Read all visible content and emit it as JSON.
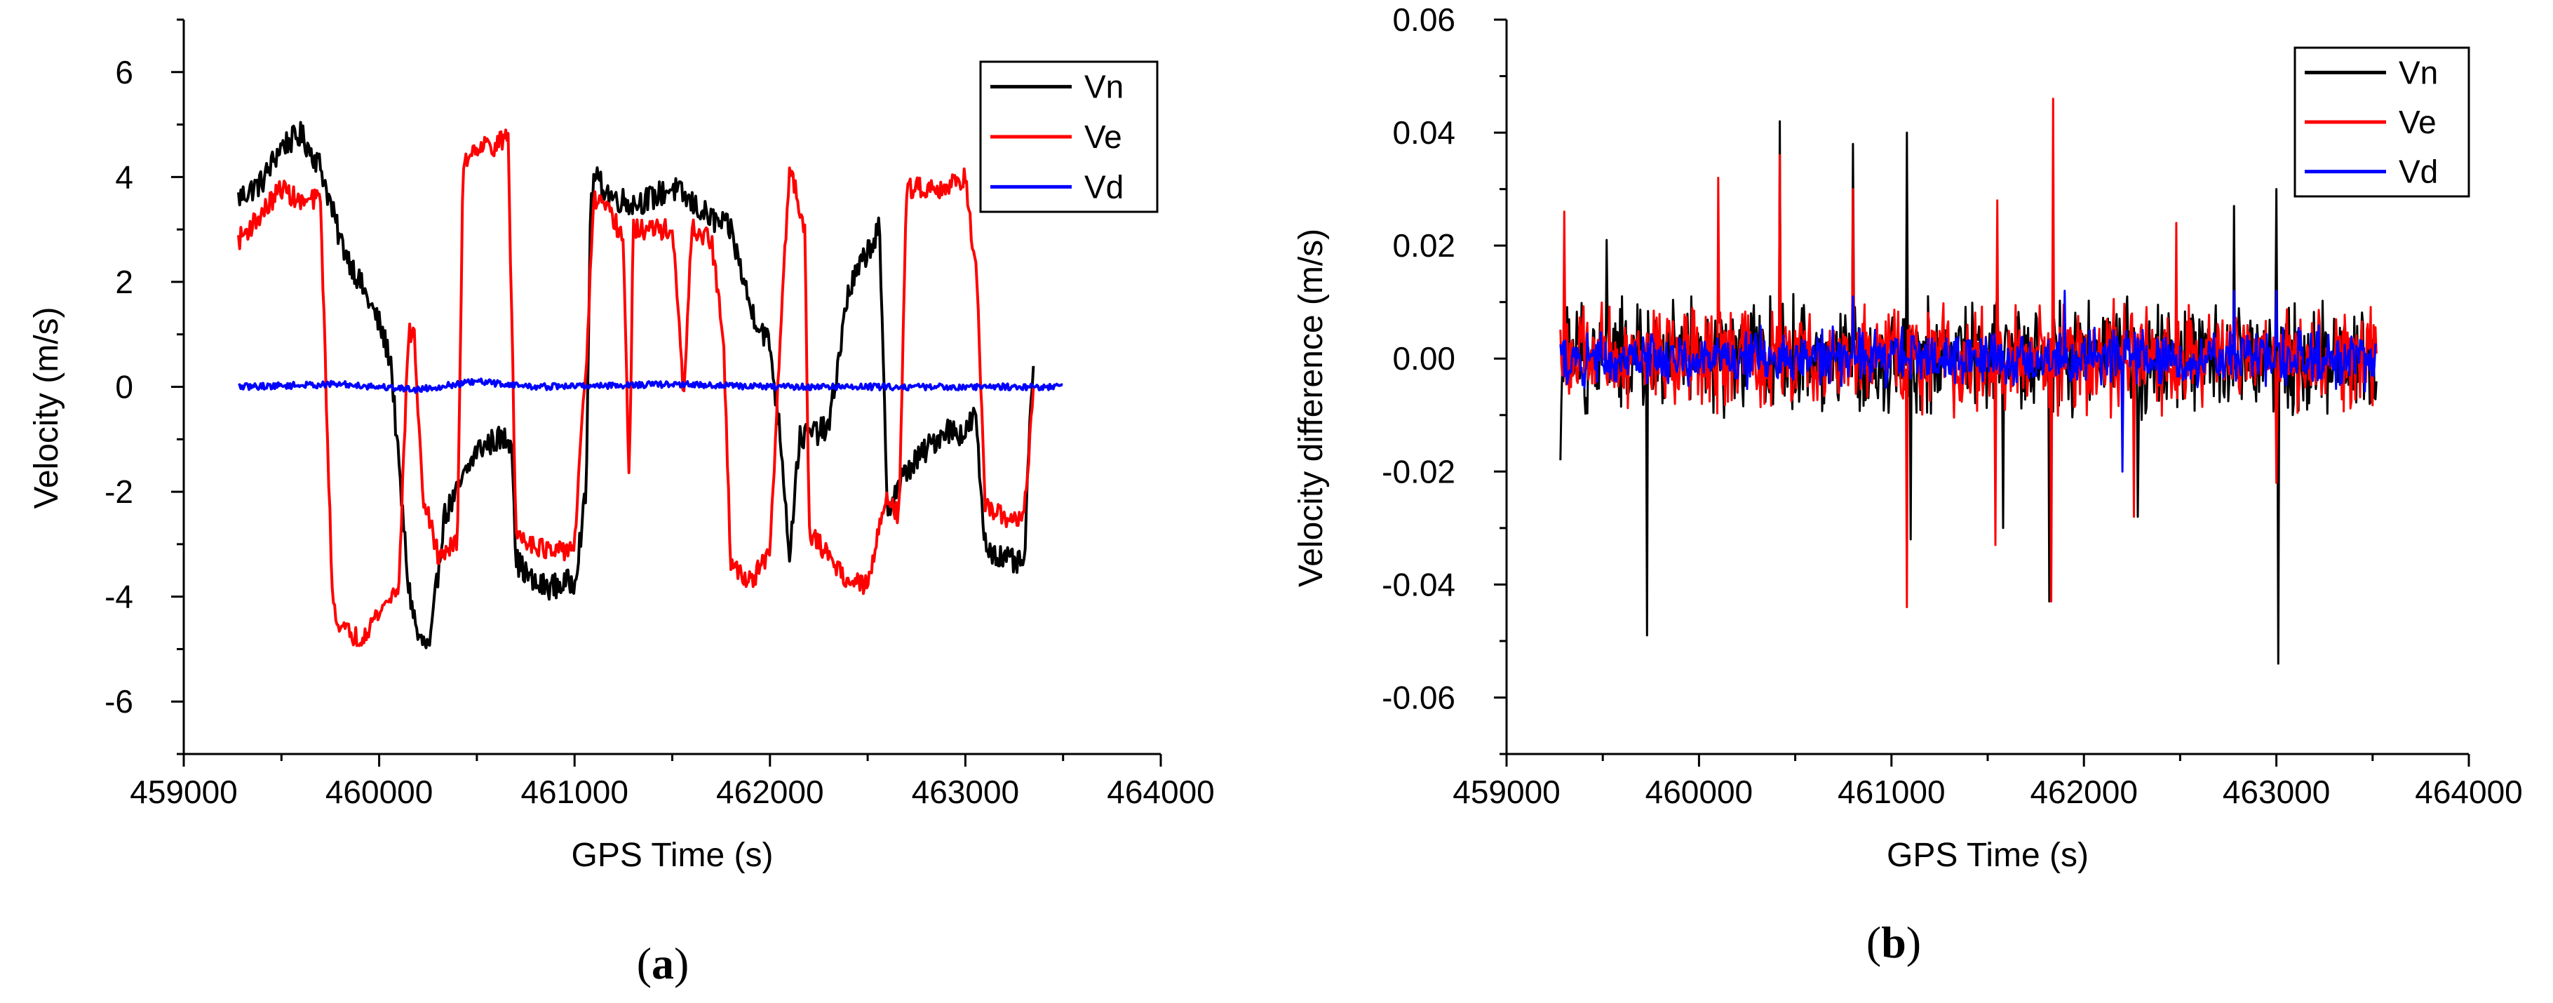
{
  "chart_data": [
    {
      "type": "line",
      "panel": "(a)",
      "panel_letter": "a",
      "xlabel": "GPS Time (s)",
      "ylabel": "Velocity (m/s)",
      "xlim": [
        459000,
        464000
      ],
      "ylim": [
        -7,
        7
      ],
      "xticks": [
        459000,
        460000,
        461000,
        462000,
        463000,
        464000
      ],
      "xtick_labels": [
        "459000",
        "460000",
        "461000",
        "462000",
        "463000",
        "464000"
      ],
      "yticks": [
        -6,
        -4,
        -2,
        0,
        2,
        4,
        6
      ],
      "ytick_labels": [
        "-6",
        "-4",
        "-2",
        "0",
        "2",
        "4",
        "6"
      ],
      "legend": "top-right",
      "series": [
        {
          "name": "Vn",
          "color": "#000000",
          "noise": 0.25,
          "x": [
            459280,
            459400,
            459500,
            459600,
            459700,
            459800,
            459900,
            460000,
            460060,
            460100,
            460150,
            460200,
            460260,
            460330,
            460400,
            460500,
            460600,
            460680,
            460700,
            460800,
            460900,
            461000,
            461060,
            461080,
            461100,
            461200,
            461300,
            461400,
            461500,
            461600,
            461700,
            461800,
            461900,
            462000,
            462060,
            462100,
            462150,
            462200,
            462300,
            462400,
            462500,
            462560,
            462600,
            462700,
            462800,
            462900,
            463000,
            463050,
            463100,
            463200,
            463300,
            463350
          ],
          "y": [
            3.6,
            3.9,
            4.6,
            4.8,
            4.2,
            2.8,
            2.0,
            1.2,
            0.5,
            -1.5,
            -3.8,
            -4.8,
            -5.0,
            -2.5,
            -2.0,
            -1.2,
            -1.0,
            -1.0,
            -3.3,
            -3.8,
            -3.8,
            -3.7,
            -2.0,
            3.2,
            4.0,
            3.6,
            3.5,
            3.6,
            3.8,
            3.5,
            3.2,
            3.0,
            1.5,
            0.8,
            -1.2,
            -3.2,
            -1.0,
            -0.9,
            -0.8,
            1.8,
            2.6,
            3.0,
            -2.3,
            -1.6,
            -1.2,
            -0.8,
            -0.9,
            -0.5,
            -3.0,
            -3.3,
            -3.4,
            0.8
          ]
        },
        {
          "name": "Ve",
          "color": "#ff0000",
          "noise": 0.2,
          "x": [
            459280,
            459400,
            459500,
            459600,
            459700,
            459720,
            459760,
            459800,
            459900,
            460000,
            460100,
            460150,
            460180,
            460220,
            460300,
            460400,
            460430,
            460500,
            460600,
            460660,
            460700,
            460800,
            460900,
            461000,
            461060,
            461100,
            461200,
            461250,
            461280,
            461300,
            461400,
            461500,
            461560,
            461600,
            461700,
            461760,
            461800,
            461900,
            462000,
            462060,
            462100,
            462180,
            462200,
            462300,
            462400,
            462500,
            462600,
            462660,
            462700,
            462800,
            462900,
            463000,
            463060,
            463100,
            463200,
            463300,
            463350
          ],
          "y": [
            2.8,
            3.3,
            3.8,
            3.5,
            3.6,
            1.0,
            -4.0,
            -4.6,
            -4.8,
            -4.3,
            -3.8,
            1.0,
            1.0,
            -2.0,
            -3.2,
            -3.0,
            4.3,
            4.6,
            4.6,
            4.8,
            -2.8,
            -3.0,
            -3.2,
            -3.0,
            0.5,
            3.6,
            3.2,
            2.8,
            -2.0,
            3.0,
            3.0,
            3.0,
            -0.2,
            3.0,
            2.8,
            1.0,
            -3.4,
            -3.7,
            -3.2,
            1.5,
            4.2,
            3.0,
            -2.8,
            -3.2,
            -3.7,
            -3.8,
            -2.0,
            -2.5,
            3.8,
            3.8,
            3.8,
            4.0,
            2.0,
            -2.3,
            -2.5,
            -2.5,
            0.0
          ]
        },
        {
          "name": "Vd",
          "color": "#0000ff",
          "noise": 0.06,
          "x": [
            459280,
            459800,
            460200,
            460500,
            460800,
            461500,
            462000,
            462800,
            463100,
            463500
          ],
          "y": [
            0.0,
            0.05,
            -0.05,
            0.1,
            0.0,
            0.05,
            0.0,
            0.0,
            0.0,
            0.0
          ]
        }
      ]
    },
    {
      "type": "line",
      "panel": "(b)",
      "panel_letter": "b",
      "xlabel": "GPS Time (s)",
      "ylabel": "Velocity difference (m/s)",
      "xlim": [
        459000,
        464000
      ],
      "ylim": [
        -0.07,
        0.06
      ],
      "xticks": [
        459000,
        460000,
        461000,
        462000,
        463000,
        464000
      ],
      "xtick_labels": [
        "459000",
        "460000",
        "461000",
        "462000",
        "463000",
        "464000"
      ],
      "yticks": [
        -0.06,
        -0.04,
        -0.02,
        0.0,
        0.02,
        0.04,
        0.06
      ],
      "ytick_labels": [
        "-0.06",
        "-0.04",
        "-0.02",
        "0.00",
        "0.02",
        "0.04",
        "0.06"
      ],
      "legend": "top-right",
      "noise_range": [
        459280,
        463520
      ],
      "series": [
        {
          "name": "Vn",
          "color": "#000000",
          "amplitude": 0.012,
          "spikes": [
            [
              459280,
              -0.018
            ],
            [
              459520,
              0.021
            ],
            [
              459730,
              -0.049
            ],
            [
              460420,
              0.042
            ],
            [
              460800,
              0.038
            ],
            [
              461080,
              0.04
            ],
            [
              461100,
              -0.032
            ],
            [
              461580,
              -0.03
            ],
            [
              461820,
              -0.043
            ],
            [
              462280,
              -0.028
            ],
            [
              462780,
              0.027
            ],
            [
              463000,
              0.03
            ],
            [
              463010,
              -0.054
            ]
          ]
        },
        {
          "name": "Ve",
          "color": "#ff0000",
          "amplitude": 0.011,
          "spikes": [
            [
              459300,
              0.026
            ],
            [
              460100,
              0.032
            ],
            [
              460420,
              0.036
            ],
            [
              460800,
              0.03
            ],
            [
              461080,
              -0.044
            ],
            [
              461550,
              0.028
            ],
            [
              461540,
              -0.033
            ],
            [
              461840,
              0.046
            ],
            [
              461830,
              -0.043
            ],
            [
              462260,
              -0.028
            ],
            [
              462480,
              0.024
            ],
            [
              463000,
              -0.022
            ]
          ]
        },
        {
          "name": "Vd",
          "color": "#0000ff",
          "amplitude": 0.006,
          "spikes": [
            [
              460800,
              0.011
            ],
            [
              461900,
              0.012
            ],
            [
              462200,
              -0.02
            ],
            [
              462780,
              0.012
            ],
            [
              463000,
              0.012
            ]
          ]
        }
      ]
    }
  ]
}
